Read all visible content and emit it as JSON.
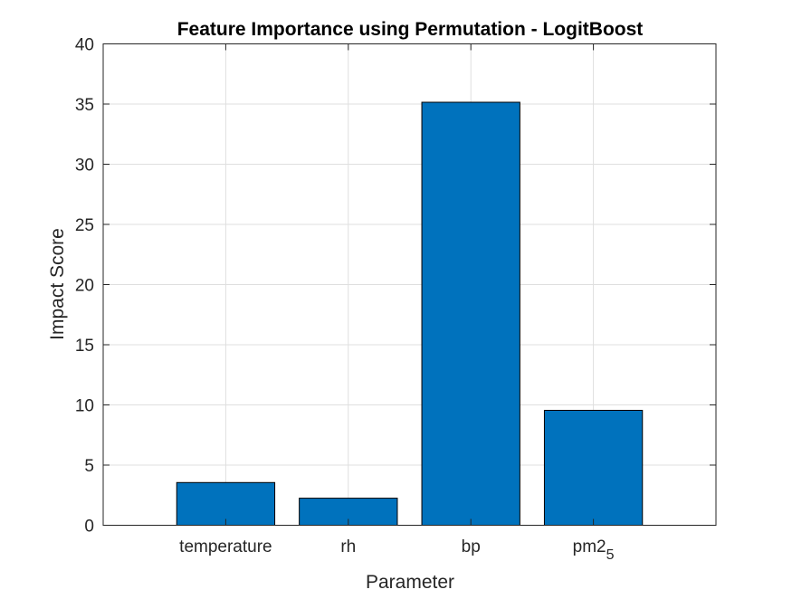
{
  "chart_data": {
    "type": "bar",
    "title": "Feature Importance using Permutation - LogitBoost",
    "xlabel": "Parameter",
    "ylabel": "Impact Score",
    "categories": [
      "temperature",
      "rh",
      "bp",
      "pm2_5"
    ],
    "category_labels": [
      {
        "base": "temperature",
        "sub": ""
      },
      {
        "base": "rh",
        "sub": ""
      },
      {
        "base": "bp",
        "sub": ""
      },
      {
        "base": "pm2",
        "sub": "5"
      }
    ],
    "values": [
      3.55,
      2.25,
      35.15,
      9.55
    ],
    "ylim": [
      0,
      40
    ],
    "xlim": [
      0,
      5
    ],
    "yticks": [
      0,
      5,
      10,
      15,
      20,
      25,
      30,
      35,
      40
    ],
    "grid": true,
    "bar_color": "#0072BD",
    "axis_color": "#262626",
    "grid_color": "#DFDFDF"
  }
}
